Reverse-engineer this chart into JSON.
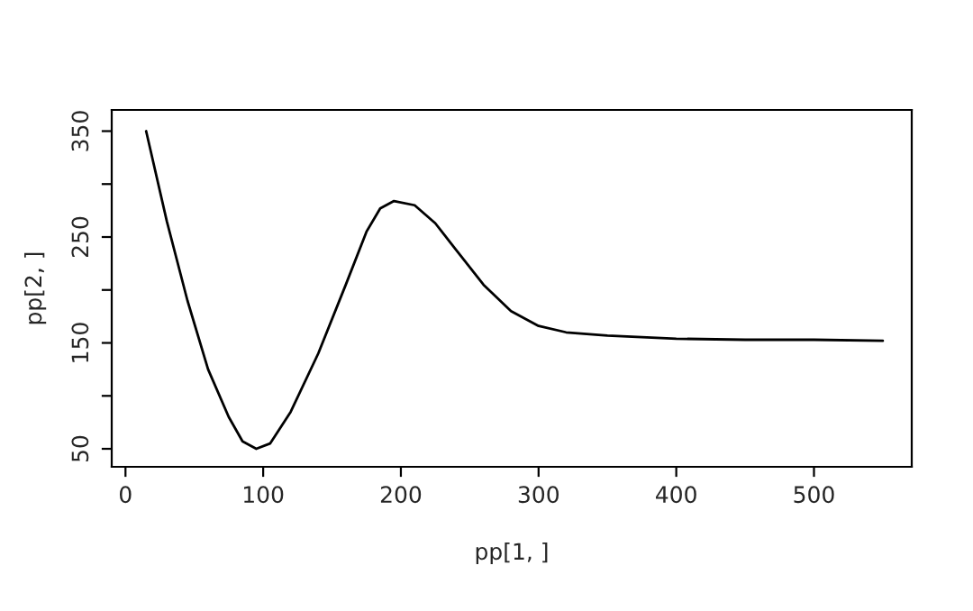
{
  "chart_data": {
    "type": "line",
    "xlabel": "pp[1, ]",
    "ylabel": "pp[2, ]",
    "x": [
      15,
      30,
      45,
      60,
      75,
      85,
      95,
      105,
      120,
      140,
      160,
      175,
      185,
      195,
      210,
      225,
      240,
      260,
      280,
      300,
      320,
      350,
      400,
      450,
      500,
      550
    ],
    "series": [
      {
        "color": "#000000",
        "values": [
          350,
          265,
          190,
          125,
          80,
          57,
          50,
          55,
          85,
          140,
          205,
          255,
          277,
          284,
          280,
          263,
          238,
          205,
          180,
          166,
          160,
          157,
          154,
          153,
          153,
          152
        ]
      }
    ],
    "xlim": [
      -10,
      571
    ],
    "ylim": [
      33,
      370
    ],
    "xticks": [
      0,
      100,
      200,
      300,
      400,
      500
    ],
    "yticks": [
      50,
      {
        "value": 100,
        "label": null
      },
      150,
      {
        "value": 200,
        "label": null
      },
      250,
      {
        "value": 300,
        "label": null
      },
      350
    ],
    "grid": false,
    "legend": false,
    "marker": "none",
    "line_style": "solid"
  }
}
